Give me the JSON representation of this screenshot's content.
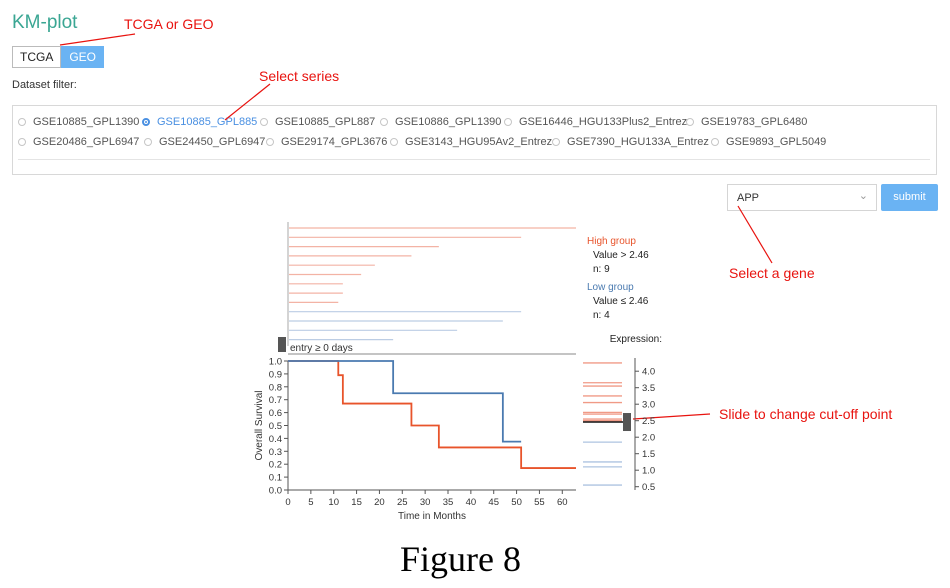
{
  "app": {
    "title": "KM-plot"
  },
  "source_toggle": {
    "options": [
      "TCGA",
      "GEO"
    ],
    "selected": "GEO"
  },
  "dataset_filter": {
    "label": "Dataset filter:",
    "row1": [
      "GSE10885_GPL1390",
      "GSE10885_GPL885",
      "GSE10885_GPL887",
      "GSE10886_GPL1390",
      "GSE16446_HGU133Plus2_Entrez",
      "GSE19783_GPL6480"
    ],
    "row2": [
      "GSE20486_GPL6947",
      "GSE24450_GPL6947",
      "GSE29174_GPL3676",
      "GSE3143_HGU95Av2_Entrez",
      "GSE7390_HGU133A_Entrez",
      "GSE9893_GPL5049"
    ],
    "selected": "GSE10885_GPL885"
  },
  "gene_select": {
    "value": "APP"
  },
  "submit_label": "submit",
  "annotations": {
    "source": "TCGA or GEO",
    "series": "Select series",
    "gene": "Select a gene",
    "cutoff": "Slide to change cut-off point"
  },
  "figure_caption": "Figure 8",
  "colors": {
    "high": "#e8542b",
    "low": "#4a7ab0",
    "accent": "#6ab3f3",
    "annotation": "#e8130f",
    "title": "#3aa693"
  },
  "legend": {
    "high_title": "High group",
    "high_value": "Value > 2.46",
    "high_n": "n: 9",
    "low_title": "Low group",
    "low_value": "Value ≤ 2.46",
    "low_n": "n: 4"
  },
  "entry_label": "entry ≥ 0 days",
  "expression_label": "Expression:",
  "chart_data": {
    "type": "line",
    "xlabel": "Time in Months",
    "ylabel": "Overall Survival",
    "x_ticks": [
      0,
      5,
      10,
      15,
      20,
      25,
      30,
      35,
      40,
      45,
      50,
      55,
      60
    ],
    "y_ticks": [
      0.0,
      0.1,
      0.2,
      0.3,
      0.4,
      0.5,
      0.6,
      0.7,
      0.8,
      0.9,
      1.0
    ],
    "xlim": [
      0,
      63
    ],
    "ylim": [
      0,
      1
    ],
    "series": [
      {
        "name": "High group",
        "color": "#e8542b",
        "steps": [
          [
            0,
            1.0
          ],
          [
            11,
            0.89
          ],
          [
            12,
            0.67
          ],
          [
            25,
            0.67
          ],
          [
            27,
            0.5
          ],
          [
            33,
            0.33
          ],
          [
            51,
            0.33
          ],
          [
            51,
            0.17
          ],
          [
            63,
            0.17
          ]
        ]
      },
      {
        "name": "Low group",
        "color": "#4a7ab0",
        "steps": [
          [
            0,
            1.0
          ],
          [
            23,
            1.0
          ],
          [
            23,
            0.75
          ],
          [
            47,
            0.75
          ],
          [
            47,
            0.375
          ],
          [
            51,
            0.375
          ]
        ]
      }
    ],
    "follow_up_high": [
      63,
      51,
      33,
      27,
      19,
      16,
      12,
      12,
      11
    ],
    "follow_up_low": [
      51,
      47,
      37,
      23
    ],
    "expression": {
      "ticks": [
        0.5,
        1.0,
        1.5,
        2.0,
        2.5,
        3.0,
        3.5,
        4.0
      ],
      "range": [
        0.4,
        4.4
      ],
      "high_values": [
        4.25,
        3.65,
        3.55,
        3.25,
        3.05,
        2.75,
        2.7,
        2.55,
        2.5
      ],
      "low_values": [
        1.85,
        1.25,
        1.1,
        0.55
      ],
      "cutoff": 2.46
    }
  }
}
